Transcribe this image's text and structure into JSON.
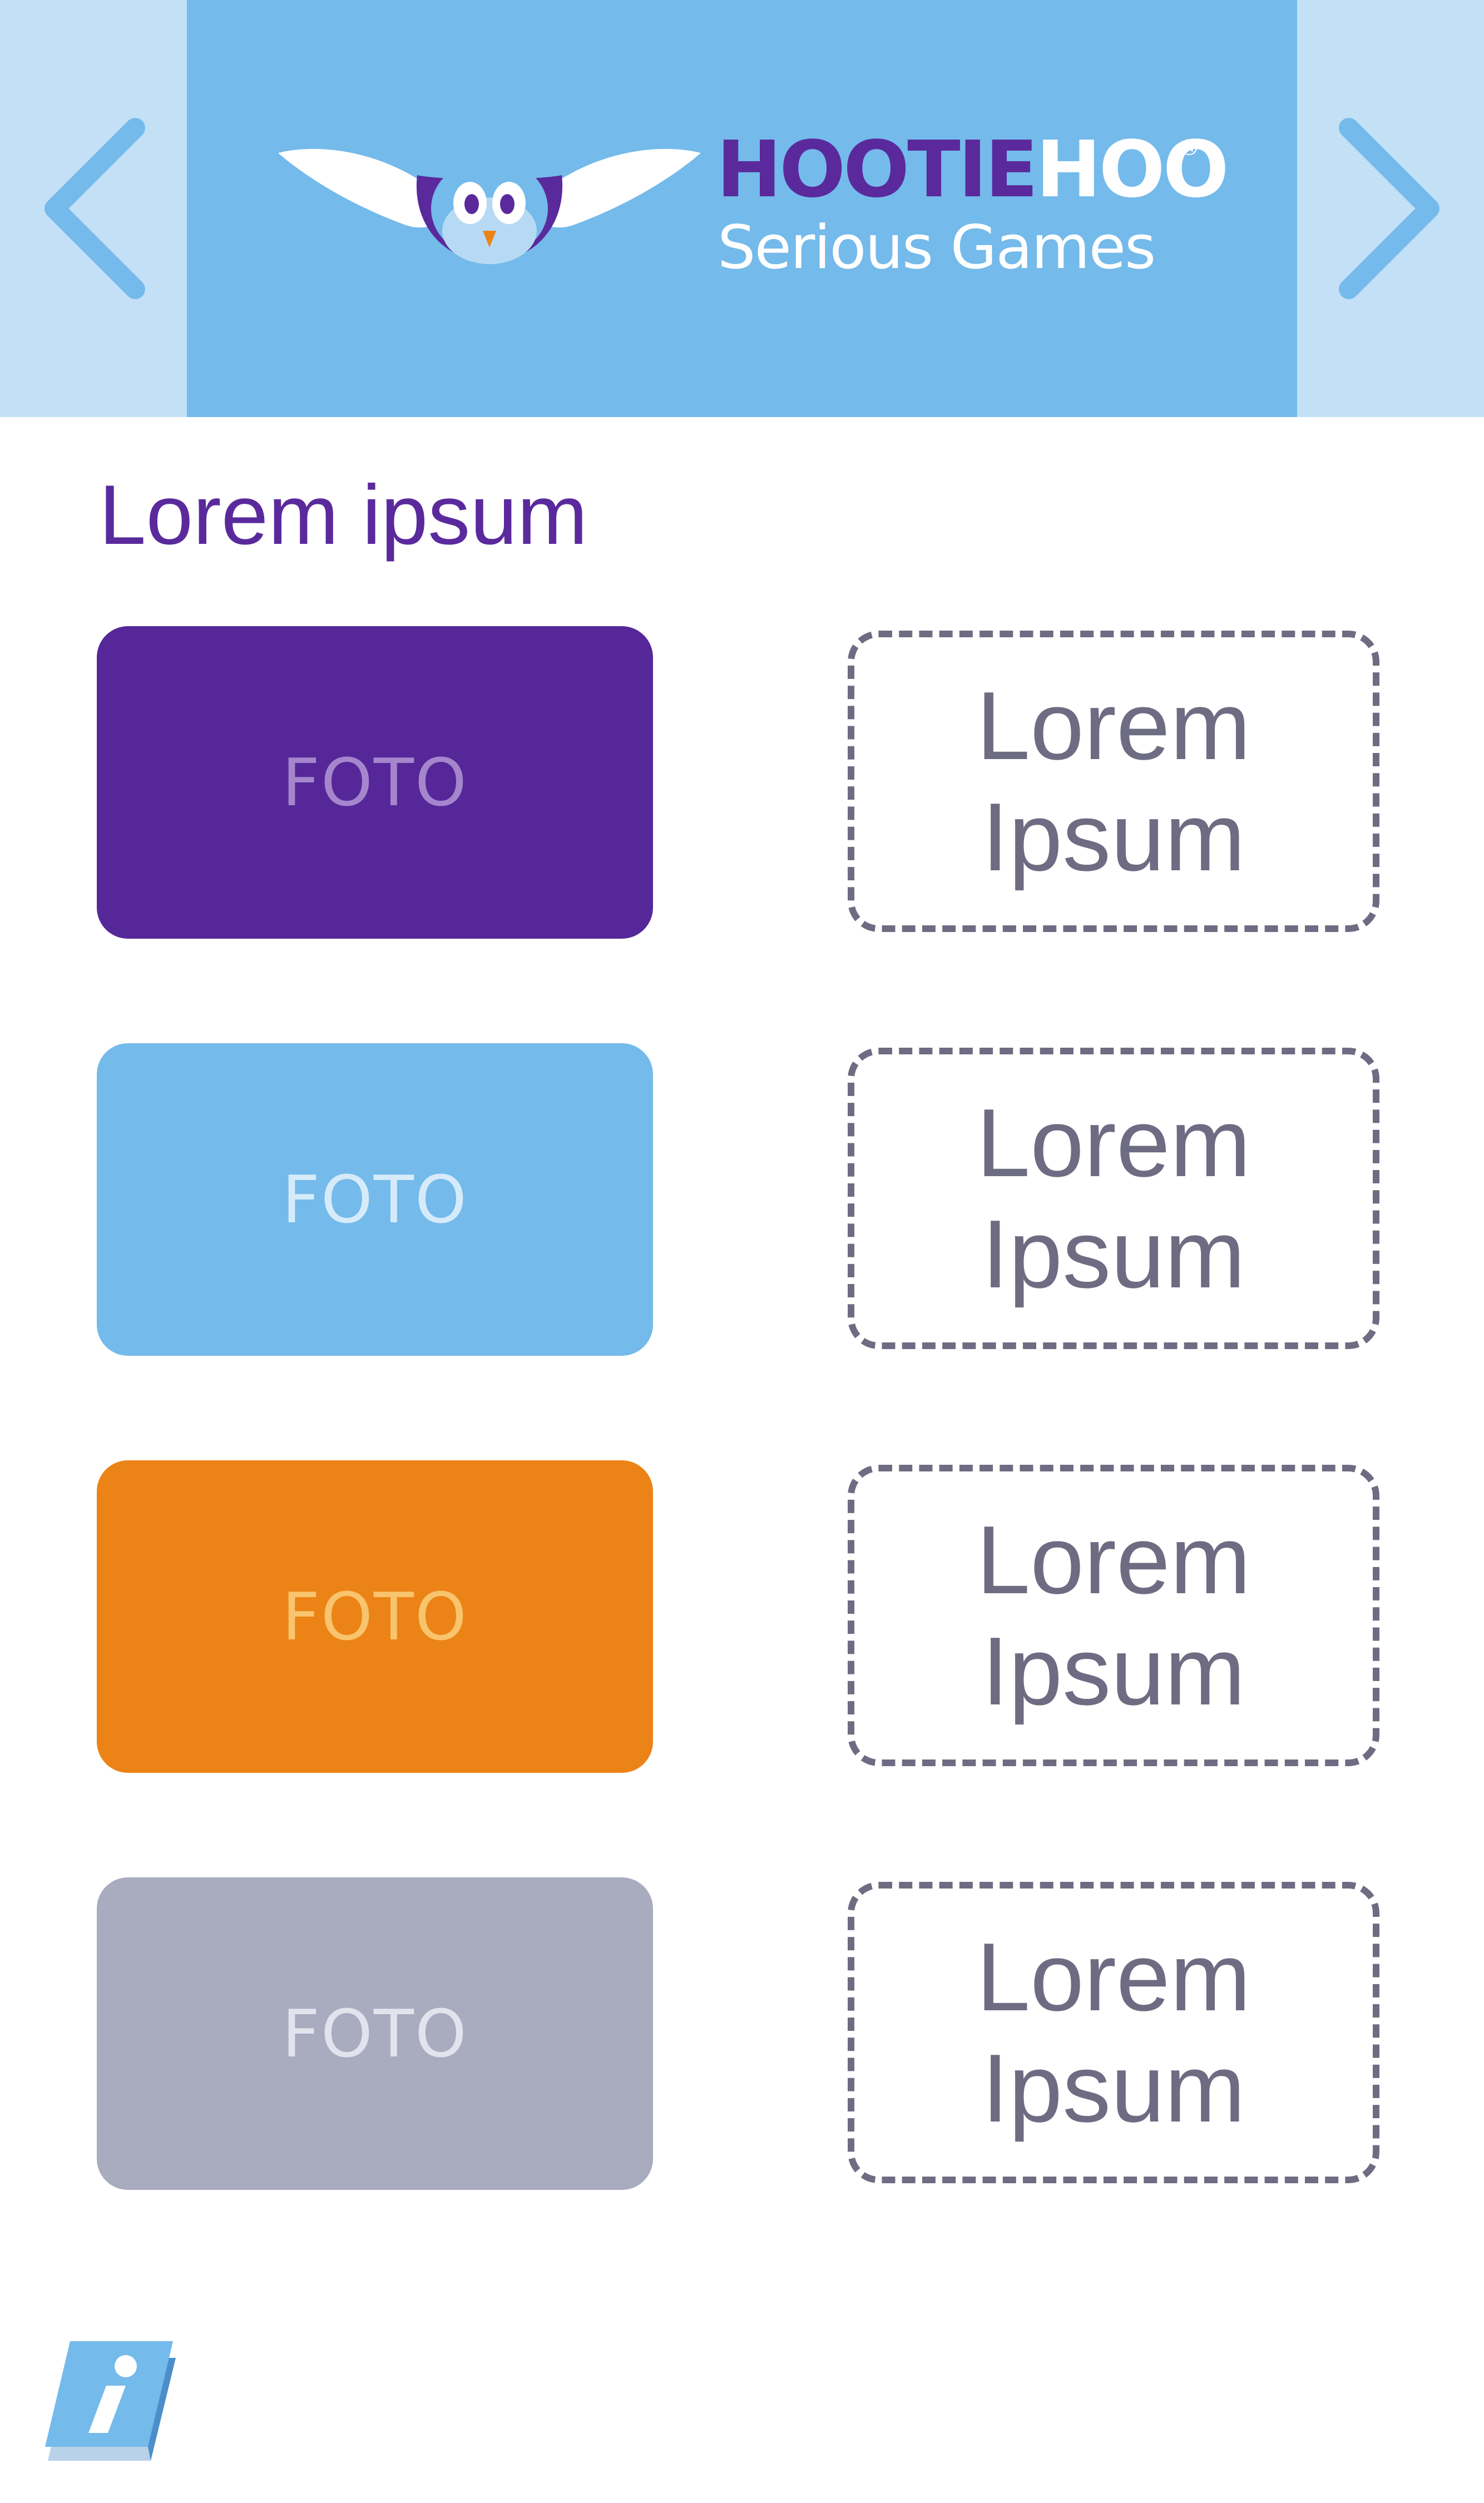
{
  "header": {
    "brand_part1": "HOOTIE",
    "brand_part2": "HOO",
    "brand_registered": "®",
    "brand_subtitle": "Serious Games",
    "prev_icon": "chevron-left-icon",
    "next_icon": "chevron-right-icon",
    "logo_icon": "owl-logo"
  },
  "main": {
    "title": "Lorem ipsum",
    "rows": [
      {
        "photo_label": "FOTO",
        "photo_color": "#552799",
        "text_line1": "Lorem",
        "text_line2": "Ipsum"
      },
      {
        "photo_label": "FOTO",
        "photo_color": "#74baeb",
        "text_line1": "Lorem",
        "text_line2": "Ipsum"
      },
      {
        "photo_label": "FOTO",
        "photo_color": "#ec8316",
        "text_line1": "Lorem",
        "text_line2": "Ipsum"
      },
      {
        "photo_label": "FOTO",
        "photo_color": "#a9abbe",
        "text_line1": "Lorem",
        "text_line2": "Ipsum"
      }
    ]
  },
  "footer": {
    "info_icon": "info-book-icon"
  },
  "colors": {
    "header_side": "#c4e0f6",
    "header_center": "#74baeb",
    "brand_purple": "#5a2a9c",
    "dashed_border": "#6e6c82",
    "info_blue": "#74baeb"
  }
}
